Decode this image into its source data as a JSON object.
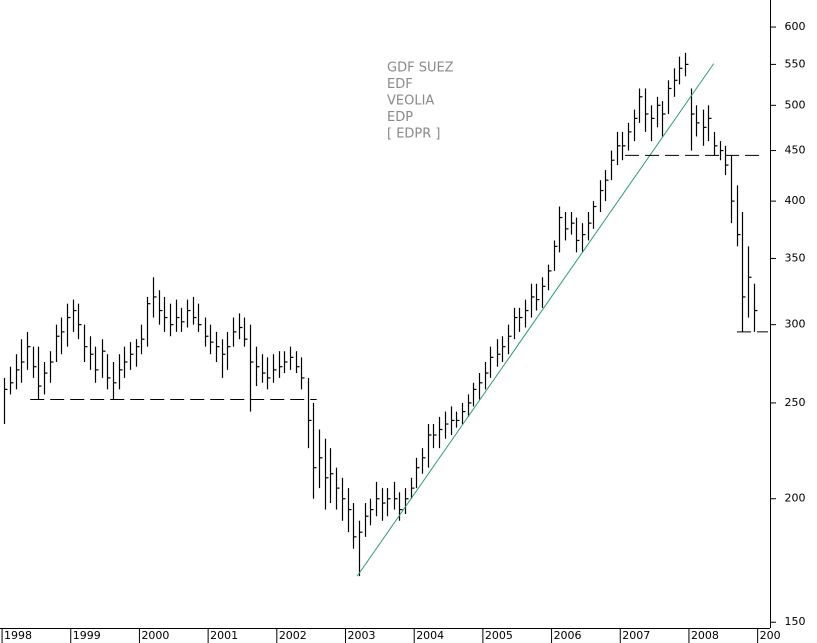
{
  "chart_data": {
    "type": "ohlc",
    "log_scale": true,
    "bar_color": "#000000",
    "annotations": [
      "GDF SUEZ",
      "EDF",
      "VEOLIA",
      "EDP",
      "[ EDPR ]"
    ],
    "annotation_color": "#8a8a8a",
    "xlim": [
      1997.97,
      2009.18
    ],
    "xticks": [
      1998,
      1999,
      2000,
      2001,
      2002,
      2003,
      2004,
      2005,
      2006,
      2007,
      2008,
      {
        "value": 2009,
        "label": "200"
      }
    ],
    "ylim": [
      148,
      639
    ],
    "yticks": [
      150,
      200,
      250,
      300,
      350,
      400,
      450,
      500,
      550,
      600
    ],
    "x": [
      1998.0,
      1998.08,
      1998.17,
      1998.25,
      1998.33,
      1998.42,
      1998.5,
      1998.58,
      1998.67,
      1998.75,
      1998.83,
      1998.92,
      1999.0,
      1999.08,
      1999.17,
      1999.25,
      1999.33,
      1999.42,
      1999.5,
      1999.58,
      1999.67,
      1999.75,
      1999.83,
      1999.92,
      2000.0,
      2000.08,
      2000.17,
      2000.25,
      2000.33,
      2000.42,
      2000.5,
      2000.58,
      2000.67,
      2000.75,
      2000.83,
      2000.92,
      2001.0,
      2001.08,
      2001.17,
      2001.25,
      2001.33,
      2001.42,
      2001.5,
      2001.58,
      2001.67,
      2001.75,
      2001.83,
      2001.92,
      2002.0,
      2002.08,
      2002.17,
      2002.25,
      2002.33,
      2002.42,
      2002.5,
      2002.58,
      2002.67,
      2002.75,
      2002.83,
      2002.92,
      2003.0,
      2003.08,
      2003.17,
      2003.25,
      2003.33,
      2003.42,
      2003.5,
      2003.58,
      2003.67,
      2003.75,
      2003.83,
      2003.92,
      2004.0,
      2004.08,
      2004.17,
      2004.25,
      2004.33,
      2004.42,
      2004.5,
      2004.58,
      2004.67,
      2004.75,
      2004.83,
      2004.92,
      2005.0,
      2005.08,
      2005.17,
      2005.25,
      2005.33,
      2005.42,
      2005.5,
      2005.58,
      2005.67,
      2005.75,
      2005.83,
      2005.92,
      2006.0,
      2006.08,
      2006.17,
      2006.25,
      2006.33,
      2006.42,
      2006.5,
      2006.58,
      2006.67,
      2006.75,
      2006.83,
      2006.92,
      2007.0,
      2007.08,
      2007.17,
      2007.25,
      2007.33,
      2007.42,
      2007.5,
      2007.58,
      2007.67,
      2007.75,
      2007.83,
      2007.92,
      2008.0,
      2008.08,
      2008.17,
      2008.25,
      2008.33,
      2008.42,
      2008.5,
      2008.58,
      2008.67,
      2008.75,
      2008.83,
      2008.92
    ],
    "high": [
      265,
      272,
      280,
      290,
      295,
      285,
      285,
      275,
      282,
      300,
      305,
      315,
      318,
      315,
      300,
      292,
      285,
      290,
      280,
      275,
      280,
      285,
      288,
      290,
      300,
      320,
      335,
      325,
      320,
      315,
      318,
      312,
      318,
      320,
      315,
      305,
      300,
      295,
      290,
      295,
      305,
      308,
      305,
      300,
      285,
      280,
      278,
      280,
      282,
      282,
      285,
      282,
      278,
      265,
      250,
      235,
      230,
      225,
      215,
      210,
      205,
      198,
      190,
      198,
      200,
      208,
      205,
      205,
      208,
      203,
      205,
      210,
      220,
      225,
      238,
      238,
      242,
      245,
      248,
      245,
      250,
      255,
      262,
      268,
      275,
      285,
      290,
      292,
      300,
      312,
      312,
      318,
      330,
      330,
      335,
      345,
      365,
      395,
      390,
      390,
      385,
      380,
      390,
      400,
      420,
      430,
      450,
      470,
      470,
      480,
      495,
      520,
      520,
      500,
      510,
      505,
      530,
      545,
      560,
      565,
      520,
      500,
      495,
      500,
      470,
      460,
      455,
      445,
      415,
      390,
      360,
      330
    ],
    "low": [
      238,
      255,
      258,
      262,
      270,
      265,
      252,
      255,
      262,
      275,
      280,
      285,
      295,
      290,
      275,
      270,
      262,
      265,
      258,
      252,
      258,
      265,
      270,
      272,
      280,
      285,
      305,
      300,
      295,
      292,
      295,
      295,
      298,
      300,
      295,
      285,
      280,
      275,
      265,
      270,
      285,
      290,
      285,
      245,
      260,
      262,
      258,
      262,
      265,
      268,
      270,
      268,
      258,
      225,
      200,
      205,
      195,
      198,
      195,
      190,
      185,
      178,
      167,
      183,
      188,
      192,
      190,
      192,
      195,
      190,
      193,
      200,
      205,
      212,
      215,
      225,
      225,
      230,
      232,
      236,
      238,
      242,
      248,
      252,
      258,
      265,
      272,
      275,
      280,
      290,
      295,
      298,
      305,
      310,
      312,
      325,
      340,
      355,
      365,
      370,
      355,
      355,
      365,
      375,
      390,
      400,
      420,
      435,
      440,
      450,
      460,
      480,
      470,
      460,
      475,
      465,
      490,
      510,
      525,
      535,
      450,
      465,
      455,
      460,
      445,
      440,
      425,
      380,
      360,
      295,
      305,
      295
    ],
    "close": [
      258,
      262,
      270,
      275,
      285,
      272,
      260,
      268,
      275,
      292,
      295,
      305,
      310,
      300,
      285,
      280,
      270,
      282,
      265,
      262,
      270,
      275,
      280,
      285,
      290,
      315,
      320,
      310,
      305,
      300,
      305,
      302,
      310,
      305,
      300,
      292,
      288,
      285,
      280,
      285,
      295,
      298,
      290,
      275,
      272,
      268,
      265,
      270,
      272,
      275,
      278,
      272,
      265,
      240,
      215,
      220,
      210,
      212,
      205,
      200,
      195,
      183,
      185,
      192,
      195,
      200,
      198,
      200,
      200,
      195,
      200,
      205,
      215,
      220,
      232,
      232,
      235,
      238,
      240,
      240,
      245,
      250,
      258,
      262,
      268,
      278,
      280,
      285,
      292,
      305,
      305,
      310,
      320,
      318,
      328,
      340,
      360,
      385,
      375,
      380,
      365,
      370,
      380,
      395,
      410,
      420,
      440,
      455,
      455,
      470,
      485,
      510,
      490,
      485,
      500,
      490,
      520,
      530,
      545,
      550,
      490,
      480,
      475,
      485,
      455,
      450,
      435,
      400,
      370,
      320,
      335,
      310
    ],
    "lines": [
      {
        "x": [
          2003.17,
          2008.36
        ],
        "y": [
          167,
          551
        ],
        "color": "#2e9e6e",
        "dashed": false
      },
      {
        "x": [
          1998.41,
          2002.58
        ],
        "y": [
          252,
          252
        ],
        "color": "#000000",
        "dashed": true
      },
      {
        "x": [
          2007.07,
          2009.08
        ],
        "y": [
          445,
          445
        ],
        "color": "#000000",
        "dashed": true
      },
      {
        "x": [
          2008.7,
          2009.15
        ],
        "y": [
          295,
          295
        ],
        "color": "#000000",
        "dashed": true
      }
    ]
  }
}
